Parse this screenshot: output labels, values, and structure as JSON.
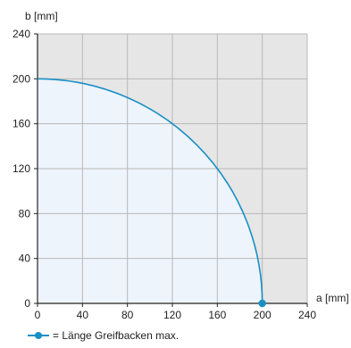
{
  "chart_data": {
    "type": "line",
    "xlabel": "a [mm]",
    "ylabel": "b [mm]",
    "xlim": [
      0,
      240
    ],
    "ylim": [
      0,
      240
    ],
    "xticks": [
      0,
      40,
      80,
      120,
      160,
      200,
      240
    ],
    "yticks": [
      0,
      40,
      80,
      120,
      160,
      200,
      240
    ],
    "grid": true,
    "series": [
      {
        "name": "= Länge Greifbacken max.",
        "curve": "quarter-circle",
        "radius": 200,
        "x": [
          0,
          40,
          80,
          120,
          160,
          200
        ],
        "y": [
          200,
          196,
          183,
          160,
          120,
          0
        ],
        "endpoint": {
          "x": 200,
          "y": 0
        }
      }
    ],
    "colors": {
      "line": "#1a8fc4",
      "area_fill": "#eef4fb",
      "outside_fill": "#e6e6e6",
      "grid": "#b8b8b8"
    }
  },
  "legend": {
    "label": "= Länge Greifbacken max."
  }
}
